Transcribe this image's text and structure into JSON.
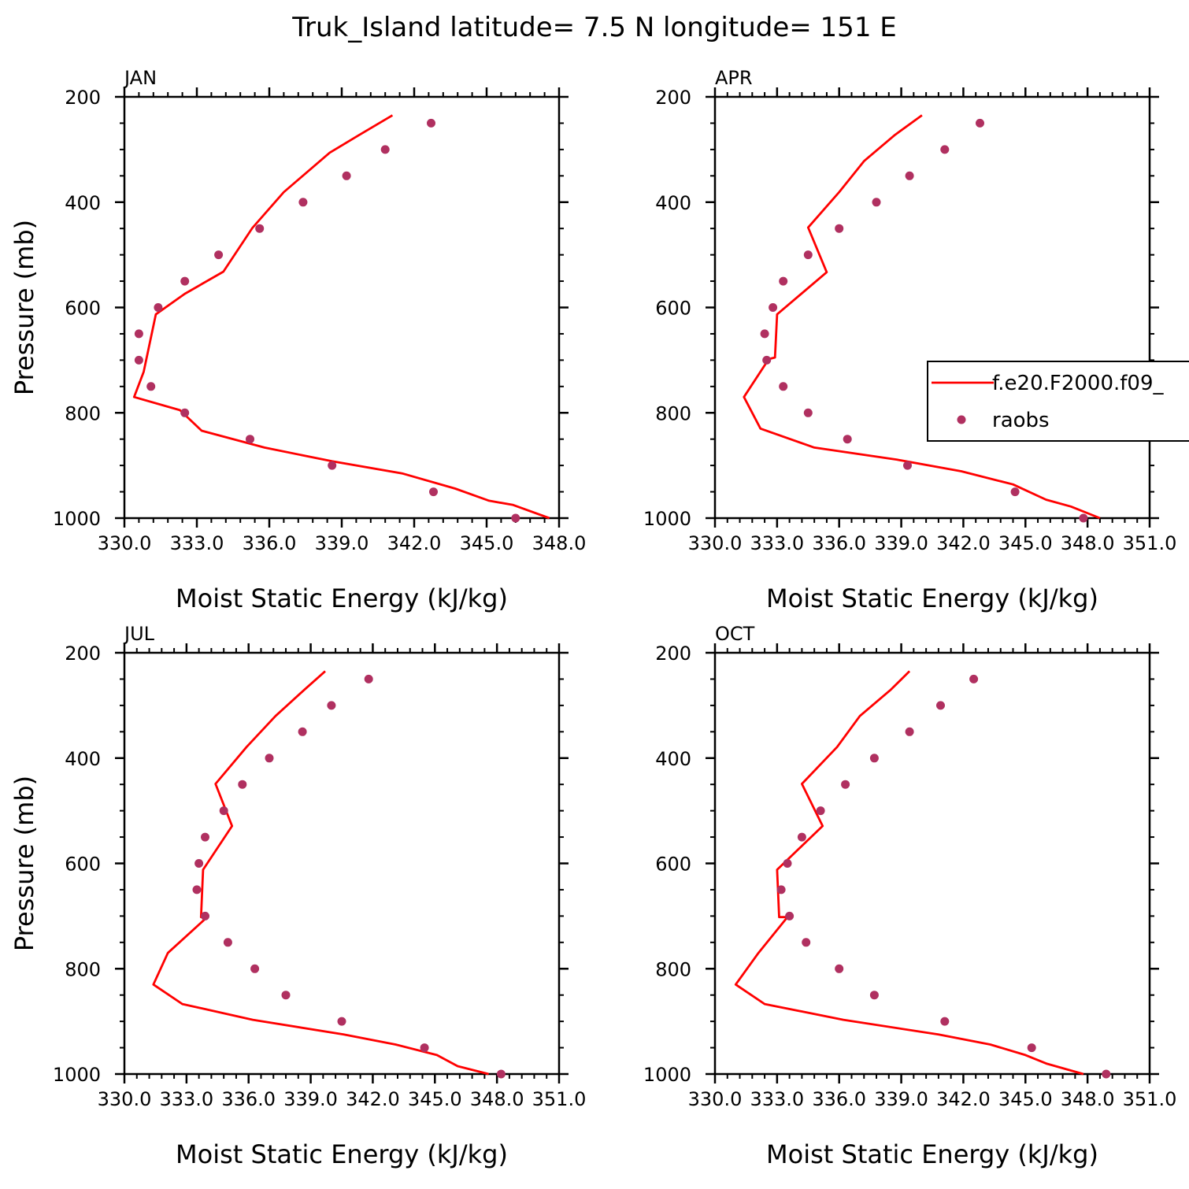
{
  "title": "Truk_Island  latitude= 7.5 N longitude= 151 E",
  "colors": {
    "model_line": "#ff0000",
    "raobs_marker": "#b03060",
    "axes": "#000000"
  },
  "legend": {
    "items": [
      {
        "label": "f.e20.F2000.f09_",
        "kind": "line"
      },
      {
        "label": "raobs",
        "kind": "marker"
      }
    ]
  },
  "chart_data": [
    {
      "type": "line",
      "panel": "JAN",
      "xlabel": "Moist Static Energy (kJ/kg)",
      "ylabel": "Pressure (mb)",
      "xlim": [
        330.0,
        348.0
      ],
      "ylim": [
        1000,
        200
      ],
      "x_tick_labels": [
        "330.0",
        "333.0",
        "336.0",
        "339.0",
        "342.0",
        "345.0",
        "348.0"
      ],
      "y_tick_labels": [
        "200",
        "400",
        "600",
        "800",
        "1000"
      ],
      "series": [
        {
          "name": "f.e20.F2000.f09_",
          "type": "line",
          "x": [
            347.6,
            346.1,
            345.1,
            343.7,
            341.5,
            338.6,
            335.8,
            333.2,
            332.3,
            330.4,
            330.8,
            331.3,
            332.5,
            334.1,
            335.3,
            336.6,
            338.5,
            339.7,
            341.1
          ],
          "y": [
            1000,
            975,
            967,
            944,
            915,
            892,
            866,
            834,
            795,
            770,
            722,
            613,
            574,
            532,
            449,
            381,
            306,
            273,
            235
          ]
        },
        {
          "name": "raobs",
          "type": "scatter",
          "x": [
            346.2,
            342.8,
            338.6,
            335.2,
            332.5,
            331.1,
            330.6,
            330.6,
            331.4,
            332.5,
            333.9,
            335.6,
            337.4,
            339.2,
            340.8,
            342.7
          ],
          "y": [
            1000,
            950,
            900,
            850,
            800,
            750,
            700,
            650,
            600,
            550,
            500,
            450,
            400,
            350,
            300,
            250
          ]
        }
      ]
    },
    {
      "type": "line",
      "panel": "APR",
      "xlabel": "Moist Static Energy (kJ/kg)",
      "ylabel": "",
      "xlim": [
        330.0,
        351.0
      ],
      "ylim": [
        1000,
        200
      ],
      "x_tick_labels": [
        "330.0",
        "333.0",
        "336.0",
        "339.0",
        "342.0",
        "345.0",
        "348.0",
        "351.0"
      ],
      "y_tick_labels": [
        "200",
        "400",
        "600",
        "800",
        "1000"
      ],
      "series": [
        {
          "name": "f.e20.F2000.f09_",
          "type": "line",
          "x": [
            348.6,
            347.2,
            346.0,
            344.4,
            341.9,
            338.8,
            334.8,
            332.2,
            331.4,
            332.6,
            332.9,
            333.0,
            335.4,
            334.5,
            336.0,
            337.2,
            338.7,
            340.0
          ],
          "y": [
            1000,
            978,
            965,
            936,
            911,
            889,
            866,
            830,
            770,
            698,
            695,
            613,
            533,
            448,
            381,
            322,
            272,
            235
          ]
        },
        {
          "name": "raobs",
          "type": "scatter",
          "x": [
            347.8,
            344.5,
            339.3,
            336.4,
            334.5,
            333.3,
            332.5,
            332.4,
            332.8,
            333.3,
            334.5,
            336.0,
            337.8,
            339.4,
            341.1,
            342.8
          ],
          "y": [
            1000,
            950,
            900,
            850,
            800,
            750,
            700,
            650,
            600,
            550,
            500,
            450,
            400,
            350,
            300,
            250
          ]
        }
      ]
    },
    {
      "type": "line",
      "panel": "JUL",
      "xlabel": "Moist Static Energy (kJ/kg)",
      "ylabel": "Pressure (mb)",
      "xlim": [
        330.0,
        351.0
      ],
      "ylim": [
        1000,
        200
      ],
      "x_tick_labels": [
        "330.0",
        "333.0",
        "336.0",
        "339.0",
        "342.0",
        "345.0",
        "348.0",
        "351.0"
      ],
      "y_tick_labels": [
        "200",
        "400",
        "600",
        "800",
        "1000"
      ],
      "series": [
        {
          "name": "f.e20.F2000.f09_",
          "type": "line",
          "x": [
            347.6,
            346.1,
            345.1,
            343.1,
            340.6,
            336.2,
            332.8,
            331.4,
            332.1,
            334.0,
            333.7,
            333.8,
            335.2,
            334.4,
            335.9,
            337.3,
            338.7,
            339.7
          ],
          "y": [
            1000,
            985,
            964,
            944,
            925,
            897,
            867,
            830,
            770,
            702,
            702,
            612,
            529,
            449,
            379,
            320,
            270,
            235
          ]
        },
        {
          "name": "raobs",
          "type": "scatter",
          "x": [
            348.2,
            344.5,
            340.5,
            337.8,
            336.3,
            335.0,
            333.9,
            333.5,
            333.6,
            333.9,
            334.8,
            335.7,
            337.0,
            338.6,
            340.0,
            341.8
          ],
          "y": [
            1000,
            950,
            900,
            850,
            800,
            750,
            700,
            650,
            600,
            550,
            500,
            450,
            400,
            350,
            300,
            250
          ]
        }
      ]
    },
    {
      "type": "line",
      "panel": "OCT",
      "xlabel": "Moist Static Energy (kJ/kg)",
      "ylabel": "",
      "xlim": [
        330.0,
        351.0
      ],
      "ylim": [
        1000,
        200
      ],
      "x_tick_labels": [
        "330.0",
        "333.0",
        "336.0",
        "339.0",
        "342.0",
        "345.0",
        "348.0",
        "351.0"
      ],
      "y_tick_labels": [
        "200",
        "400",
        "600",
        "800",
        "1000"
      ],
      "series": [
        {
          "name": "f.e20.F2000.f09_",
          "type": "line",
          "x": [
            347.8,
            346.0,
            345.0,
            343.3,
            340.8,
            336.2,
            332.4,
            331.0,
            332.1,
            333.5,
            333.1,
            333.0,
            335.2,
            334.2,
            335.9,
            337.0,
            338.5,
            339.4
          ],
          "y": [
            1000,
            980,
            964,
            944,
            925,
            897,
            867,
            830,
            770,
            702,
            702,
            612,
            529,
            449,
            379,
            320,
            270,
            235
          ]
        },
        {
          "name": "raobs",
          "type": "scatter",
          "x": [
            348.9,
            345.3,
            341.1,
            337.7,
            336.0,
            334.4,
            333.6,
            333.2,
            333.5,
            334.2,
            335.1,
            336.3,
            337.7,
            339.4,
            340.9,
            342.5
          ],
          "y": [
            1000,
            950,
            900,
            850,
            800,
            750,
            700,
            650,
            600,
            550,
            500,
            450,
            400,
            350,
            300,
            250
          ]
        }
      ]
    }
  ]
}
